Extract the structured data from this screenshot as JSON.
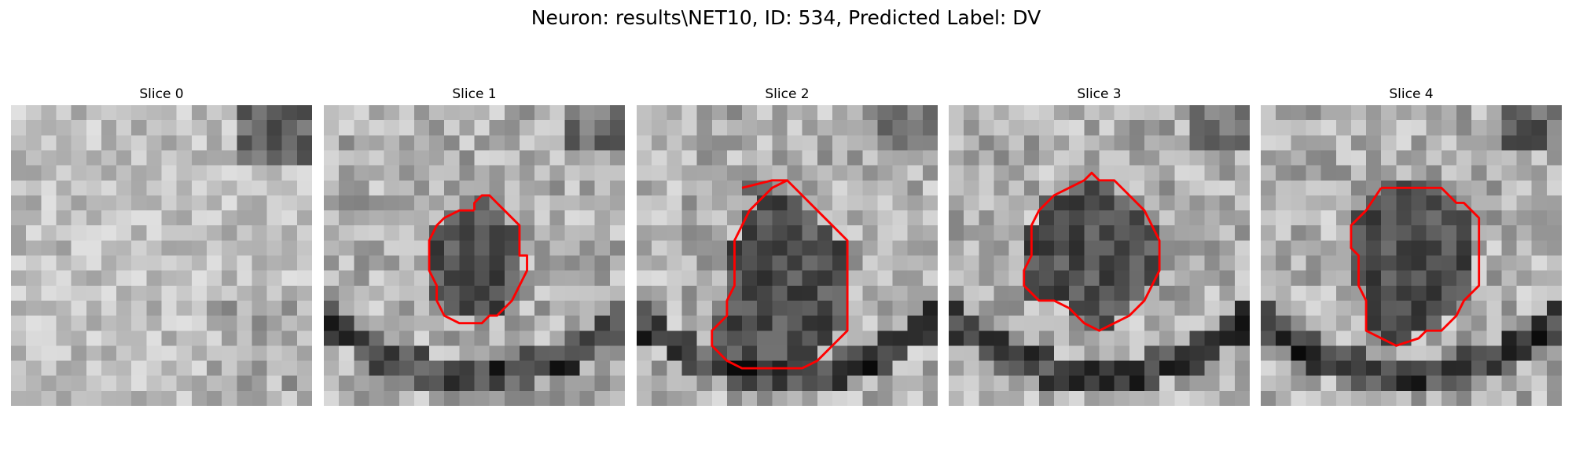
{
  "figure": {
    "suptitle": "Neuron: results\\NET10, ID: 534, Predicted Label: DV"
  },
  "colors": {
    "contour": "#ff0000",
    "background": "#ffffff"
  },
  "slices": [
    {
      "title": "Slice 0",
      "has_contour": false,
      "contour_grid": []
    },
    {
      "title": "Slice 1",
      "has_contour": true,
      "contour_grid": [
        [
          10,
          7
        ],
        [
          10,
          6.5
        ],
        [
          10.5,
          6
        ],
        [
          11,
          6
        ],
        [
          11.5,
          6.5
        ],
        [
          12,
          7
        ],
        [
          13,
          8
        ],
        [
          13,
          10
        ],
        [
          13.5,
          10
        ],
        [
          13.5,
          11
        ],
        [
          13,
          12
        ],
        [
          12.5,
          13
        ],
        [
          12,
          13.5
        ],
        [
          11.5,
          14
        ],
        [
          11,
          14
        ],
        [
          10.5,
          14.5
        ],
        [
          9,
          14.5
        ],
        [
          8,
          14
        ],
        [
          7.5,
          13
        ],
        [
          7.5,
          12
        ],
        [
          7,
          11
        ],
        [
          7,
          9
        ],
        [
          7.5,
          8
        ],
        [
          8,
          7.5
        ],
        [
          9,
          7
        ],
        [
          10,
          7
        ]
      ]
    },
    {
      "title": "Slice 2",
      "has_contour": true,
      "contour_grid": [
        [
          7,
          5.5
        ],
        [
          9,
          5
        ],
        [
          10,
          5
        ],
        [
          11,
          6
        ],
        [
          12,
          7
        ],
        [
          13,
          8
        ],
        [
          14,
          9
        ],
        [
          14,
          15
        ],
        [
          13,
          16
        ],
        [
          12,
          17
        ],
        [
          11,
          17.5
        ],
        [
          7,
          17.5
        ],
        [
          6,
          17
        ],
        [
          5,
          16
        ],
        [
          5,
          15
        ],
        [
          6,
          14
        ],
        [
          6,
          13
        ],
        [
          6.5,
          12
        ],
        [
          6.5,
          9
        ],
        [
          7,
          8
        ],
        [
          7.5,
          7
        ],
        [
          8,
          6.5
        ],
        [
          9,
          5.5
        ],
        [
          10,
          5
        ],
        [
          11,
          6
        ]
      ]
    },
    {
      "title": "Slice 3",
      "has_contour": true,
      "contour_grid": [
        [
          9,
          5
        ],
        [
          9.5,
          4.5
        ],
        [
          10,
          5
        ],
        [
          11,
          5
        ],
        [
          12,
          6
        ],
        [
          13,
          7
        ],
        [
          13.5,
          8
        ],
        [
          14,
          9
        ],
        [
          14,
          11
        ],
        [
          13.5,
          12
        ],
        [
          13,
          13
        ],
        [
          12,
          14
        ],
        [
          11,
          14.5
        ],
        [
          10,
          15
        ],
        [
          9,
          14.5
        ],
        [
          8,
          13.5
        ],
        [
          7,
          13
        ],
        [
          6,
          13
        ],
        [
          5,
          12
        ],
        [
          5,
          11
        ],
        [
          5.5,
          10
        ],
        [
          5.5,
          8
        ],
        [
          6,
          7
        ],
        [
          7,
          6
        ],
        [
          8,
          5.5
        ],
        [
          9,
          5
        ]
      ]
    },
    {
      "title": "Slice 4",
      "has_contour": true,
      "contour_grid": [
        [
          8,
          5.5
        ],
        [
          12,
          5.5
        ],
        [
          12.5,
          6
        ],
        [
          13,
          6.5
        ],
        [
          13.5,
          6.5
        ],
        [
          14,
          7
        ],
        [
          14.5,
          7.5
        ],
        [
          14.5,
          12
        ],
        [
          14,
          12.5
        ],
        [
          13.5,
          13
        ],
        [
          13,
          14
        ],
        [
          12,
          15
        ],
        [
          11,
          15
        ],
        [
          10.5,
          15.5
        ],
        [
          9,
          16
        ],
        [
          8,
          15.5
        ],
        [
          7,
          15
        ],
        [
          7,
          13
        ],
        [
          6.5,
          12
        ],
        [
          6.5,
          10
        ],
        [
          6,
          9.5
        ],
        [
          6,
          8
        ],
        [
          7,
          7
        ],
        [
          8,
          5.5
        ]
      ]
    }
  ]
}
